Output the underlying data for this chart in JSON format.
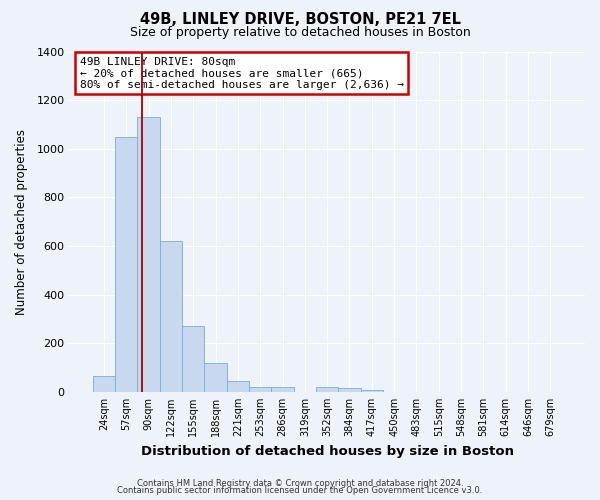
{
  "title": "49B, LINLEY DRIVE, BOSTON, PE21 7EL",
  "subtitle": "Size of property relative to detached houses in Boston",
  "xlabel": "Distribution of detached houses by size in Boston",
  "ylabel": "Number of detached properties",
  "bar_color": "#c8d8ee",
  "bar_edge_color": "#7aadd4",
  "background_color": "#eef2f9",
  "grid_color": "#ffffff",
  "categories": [
    "24sqm",
    "57sqm",
    "90sqm",
    "122sqm",
    "155sqm",
    "188sqm",
    "221sqm",
    "253sqm",
    "286sqm",
    "319sqm",
    "352sqm",
    "384sqm",
    "417sqm",
    "450sqm",
    "483sqm",
    "515sqm",
    "548sqm",
    "581sqm",
    "614sqm",
    "646sqm",
    "679sqm"
  ],
  "values": [
    65,
    1050,
    1130,
    620,
    270,
    120,
    45,
    20,
    20,
    0,
    20,
    15,
    8,
    0,
    0,
    0,
    0,
    0,
    0,
    0,
    0
  ],
  "ylim": [
    0,
    1400
  ],
  "yticks": [
    0,
    200,
    400,
    600,
    800,
    1000,
    1200,
    1400
  ],
  "red_line_x": 1.7,
  "annotation_title": "49B LINLEY DRIVE: 80sqm",
  "annotation_line1": "← 20% of detached houses are smaller (665)",
  "annotation_line2": "80% of semi-detached houses are larger (2,636) →",
  "footer1": "Contains HM Land Registry data © Crown copyright and database right 2024.",
  "footer2": "Contains public sector information licensed under the Open Government Licence v3.0."
}
